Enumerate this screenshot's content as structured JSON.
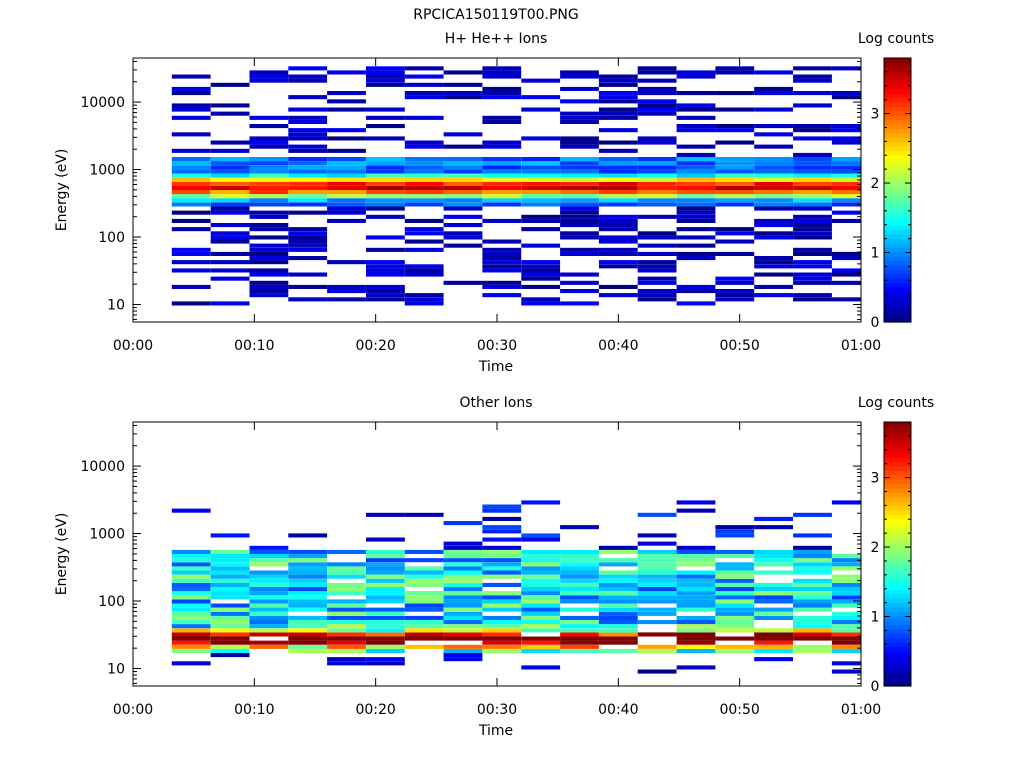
{
  "figure_title": "RPCICA150119T00.PNG",
  "chart_data": [
    {
      "type": "heatmap",
      "title": "H+ He++ Ions",
      "xlabel": "Time",
      "ylabel": "Energy (eV)",
      "x_ticks": [
        "00:00",
        "00:10",
        "00:20",
        "00:30",
        "00:40",
        "00:50",
        "01:00"
      ],
      "xlim": [
        "00:00",
        "01:00"
      ],
      "y_scale": "log",
      "ylim": [
        5.5,
        45000
      ],
      "y_ticks": [
        10,
        100,
        1000,
        10000
      ],
      "y_tick_labels": [
        "10",
        "100",
        "1000",
        "10000"
      ],
      "colorbar_label": "Log counts",
      "colorbar_ticks": [
        0,
        1,
        2,
        3
      ],
      "colorbar_range": [
        0,
        3.8
      ],
      "colormap": "jet",
      "time_bins_start_minutes": [
        3.2,
        6.4,
        9.6,
        12.8,
        16.0,
        19.2,
        22.4,
        25.6,
        28.8,
        32.0,
        35.2,
        38.4,
        41.6,
        44.8,
        48.0,
        51.2,
        54.4,
        57.6
      ],
      "time_bin_width_minutes": 3.2,
      "spectrum_summary": {
        "peak_energy_eV": 550,
        "peak_log_counts": 3.2,
        "band_energy_eV": [
          300,
          1500
        ],
        "sparse_counts_energy_range_eV": [
          10,
          35000
        ]
      }
    },
    {
      "type": "heatmap",
      "title": "Other Ions",
      "xlabel": "Time",
      "ylabel": "Energy (eV)",
      "x_ticks": [
        "00:00",
        "00:10",
        "00:20",
        "00:30",
        "00:40",
        "00:50",
        "01:00"
      ],
      "xlim": [
        "00:00",
        "01:00"
      ],
      "y_scale": "log",
      "ylim": [
        5.5,
        45000
      ],
      "y_ticks": [
        10,
        100,
        1000,
        10000
      ],
      "y_tick_labels": [
        "10",
        "100",
        "1000",
        "10000"
      ],
      "colorbar_label": "Log counts",
      "colorbar_ticks": [
        0,
        1,
        2,
        3
      ],
      "colorbar_range": [
        0,
        3.8
      ],
      "colormap": "jet",
      "time_bins_start_minutes": [
        3.2,
        6.4,
        9.6,
        12.8,
        16.0,
        19.2,
        22.4,
        25.6,
        28.8,
        32.0,
        35.2,
        38.4,
        41.6,
        44.8,
        48.0,
        51.2,
        54.4,
        57.6
      ],
      "time_bin_width_minutes": 3.2,
      "spectrum_summary": {
        "peak_energy_eV": 27,
        "peak_log_counts": 3.1,
        "band_energy_eV": [
          17,
          600
        ],
        "sparse_counts_energy_range_eV": [
          8,
          3000
        ]
      }
    }
  ]
}
